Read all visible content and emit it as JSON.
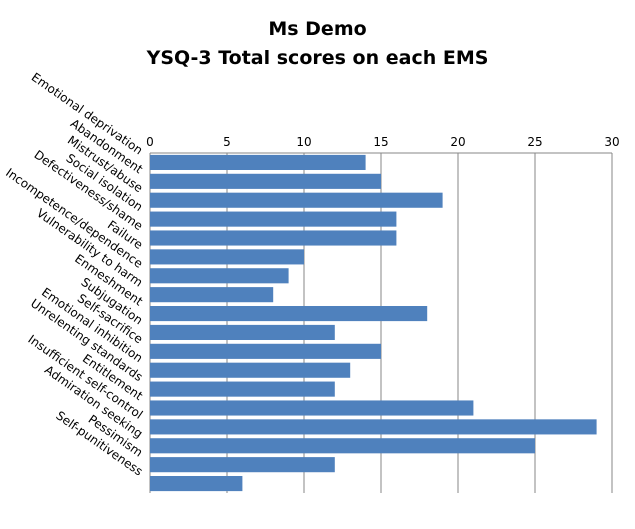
{
  "chart_data": {
    "type": "bar",
    "orientation": "horizontal",
    "title_lines": [
      "Ms Demo",
      "YSQ-3 Total scores on each EMS"
    ],
    "categories": [
      "Emotional deprivation",
      "Abandonment",
      "Mistrust/abuse",
      "Social isolation",
      "Defectiveness/shame",
      "Failure",
      "Incompetence/dependence",
      "Vulnerability to harm",
      "Enmeshment",
      "Subjugation",
      "Self-sacrifice",
      "Emotional inhibition",
      "Unrelenting standards",
      "Entitlement",
      "Insufficient self-control",
      "Admiration seeking",
      "Pessimism",
      "Self-punitiveness"
    ],
    "values": [
      14,
      15,
      19,
      16,
      16,
      10,
      9,
      8,
      18,
      12,
      15,
      13,
      12,
      21,
      29,
      25,
      12,
      6
    ],
    "xlim": [
      0,
      30
    ],
    "x_ticks": [
      0,
      5,
      10,
      15,
      20,
      25,
      30
    ],
    "x_axis_position": "top",
    "category_label_position": "top-left",
    "grid": true,
    "legend": "none",
    "bar_color": "#4F81BD"
  }
}
